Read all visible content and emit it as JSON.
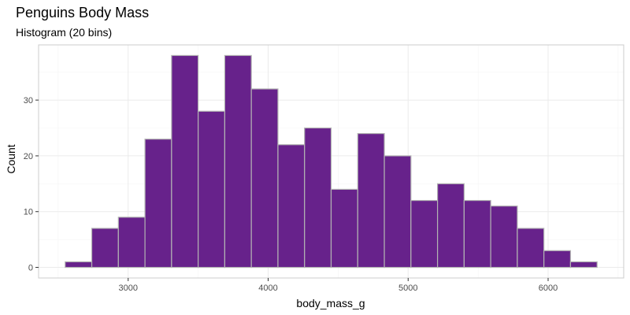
{
  "chart_data": {
    "type": "bar",
    "title": "Penguins Body Mass",
    "subtitle": "Histogram (20 bins)",
    "xlabel": "body_mass_g",
    "ylabel": "Count",
    "bin_edges": [
      2550,
      2740,
      2930,
      3120,
      3310,
      3500,
      3690,
      3880,
      4070,
      4260,
      4450,
      4640,
      4830,
      5020,
      5210,
      5400,
      5590,
      5780,
      5970,
      6160,
      6350
    ],
    "values": [
      1,
      7,
      9,
      23,
      38,
      28,
      38,
      32,
      22,
      25,
      14,
      24,
      20,
      12,
      15,
      12,
      11,
      7,
      3,
      1
    ],
    "xlim": [
      2360,
      6540
    ],
    "ylim": [
      -1.9,
      39.9
    ],
    "x_ticks": [
      3000,
      4000,
      5000,
      6000
    ],
    "x_tick_labels": [
      "3000",
      "4000",
      "5000",
      "6000"
    ],
    "y_ticks": [
      0,
      10,
      20,
      30
    ],
    "y_tick_labels": [
      "0",
      "10",
      "20",
      "30"
    ],
    "grid": true,
    "legend": "none",
    "colors": {
      "bar_fill": "#67228b",
      "bar_outline": "#b3b3b3",
      "grid_major": "#ebebeb",
      "grid_minor": "#f5f5f5",
      "panel_border": "#cccccc"
    }
  }
}
